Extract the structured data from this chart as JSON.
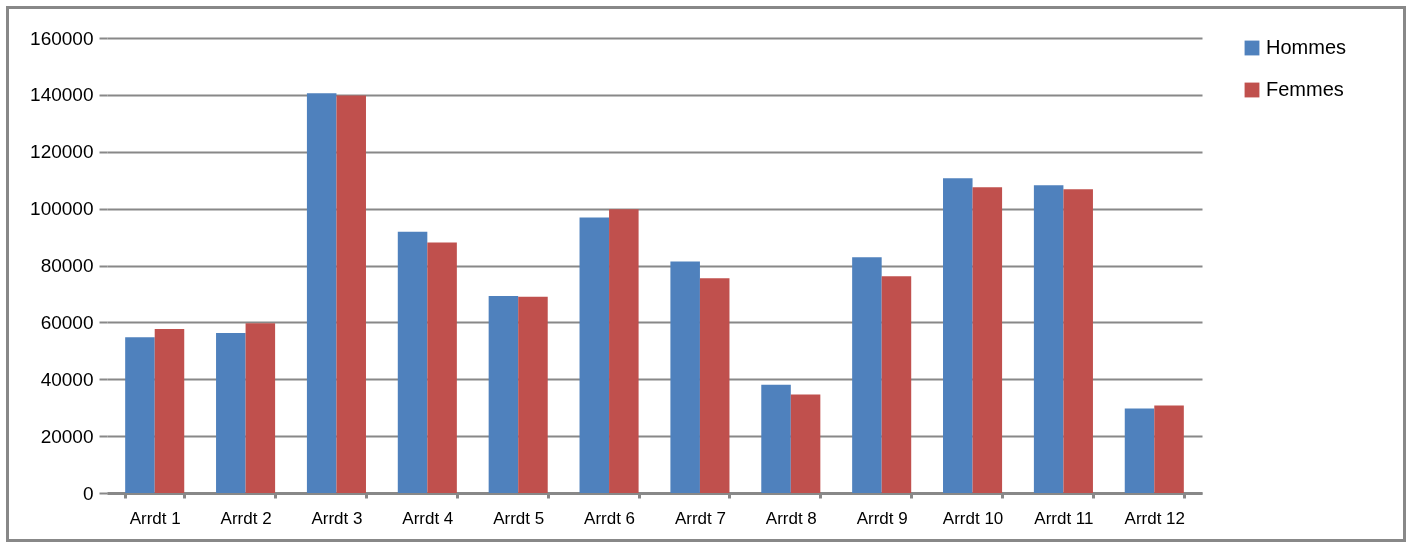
{
  "chart_data": {
    "type": "bar",
    "categories": [
      "Arrdt 1",
      "Arrdt 2",
      "Arrdt 3",
      "Arrdt 4",
      "Arrdt 5",
      "Arrdt 6",
      "Arrdt 7",
      "Arrdt 8",
      "Arrdt 9",
      "Arrdt 10",
      "Arrdt 11",
      "Arrdt 12"
    ],
    "series": [
      {
        "name": "Hommes",
        "color": "#4f81bd",
        "values": [
          54800,
          56300,
          140600,
          91900,
          69300,
          96900,
          81400,
          38100,
          82900,
          110700,
          108200,
          29700
        ]
      },
      {
        "name": "Femmes",
        "color": "#c0504d",
        "values": [
          57700,
          59700,
          139800,
          88100,
          69000,
          99800,
          75500,
          34600,
          76200,
          107500,
          106800,
          30800
        ]
      }
    ],
    "ylim": [
      0,
      160000
    ],
    "yticks": [
      0,
      20000,
      40000,
      60000,
      80000,
      100000,
      120000,
      140000,
      160000
    ],
    "grid": "y",
    "legend": "right"
  }
}
